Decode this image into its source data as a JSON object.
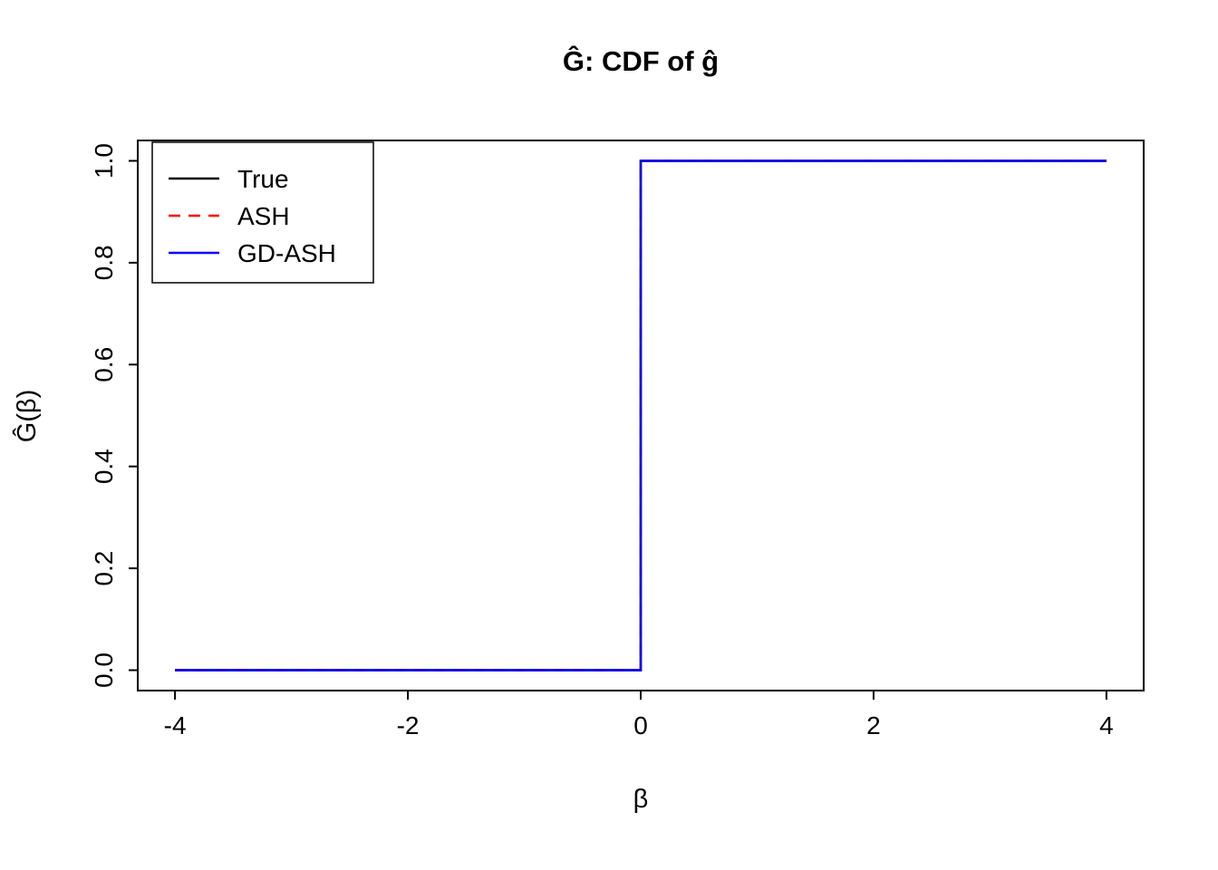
{
  "chart_data": {
    "type": "line",
    "subtype": "step-cdf",
    "title": "Ĝ: CDF of ĝ",
    "xlabel": "β",
    "ylabel": "Ĝ(β)",
    "xlim": [
      -4,
      4
    ],
    "ylim": [
      0,
      1
    ],
    "x_ticks": [
      -4,
      -2,
      0,
      2,
      4
    ],
    "x_tick_labels": [
      "-4",
      "-2",
      "0",
      "2",
      "4"
    ],
    "y_ticks": [
      0,
      0.2,
      0.4,
      0.6,
      0.8,
      1
    ],
    "y_tick_labels": [
      "0.0",
      "0.2",
      "0.4",
      "0.6",
      "0.8",
      "1.0"
    ],
    "grid": false,
    "legend_position": "top-left",
    "series": [
      {
        "name": "True",
        "color": "#000000",
        "line_style": "solid",
        "x": [
          -4,
          0,
          0,
          4
        ],
        "y": [
          0,
          0,
          1,
          1
        ]
      },
      {
        "name": "ASH",
        "color": "#ff0000",
        "line_style": "dashed",
        "x": [
          -4,
          0,
          0,
          4
        ],
        "y": [
          0,
          0,
          1,
          1
        ]
      },
      {
        "name": "GD-ASH",
        "color": "#0000ff",
        "line_style": "solid",
        "x": [
          -4,
          0,
          0,
          4
        ],
        "y": [
          0,
          0,
          1,
          1
        ]
      }
    ]
  }
}
